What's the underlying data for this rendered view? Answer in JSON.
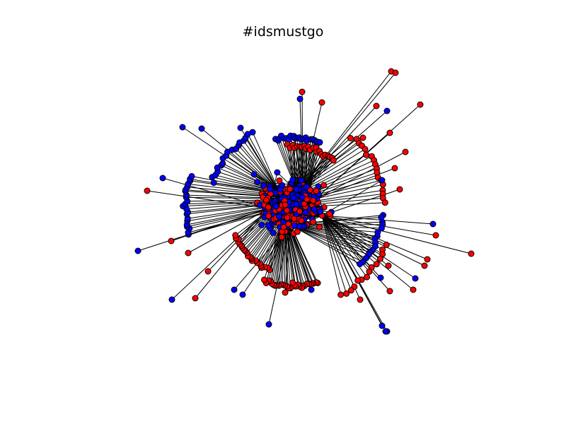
{
  "title": "#idsmustgo",
  "colors": {
    "node_red": "#ff0000",
    "node_blue": "#0000ff",
    "edge": "#000000",
    "outline": "#000000",
    "background": "#ffffff"
  }
}
